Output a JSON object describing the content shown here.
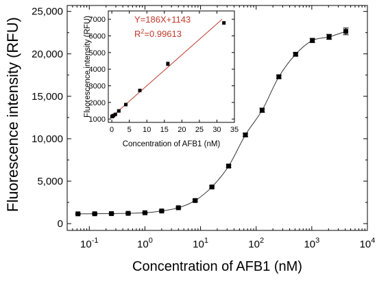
{
  "chart_data": [
    {
      "type": "scatter",
      "xscale": "log",
      "xlabel": "Concentration of AFB1 (nM)",
      "ylabel": "Fluorescence intensity (RFU)",
      "xlim": [
        0.04,
        10000
      ],
      "ylim": [
        -800,
        25700
      ],
      "xticks": [
        {
          "value": 0.1,
          "base": "10",
          "exp": "-1"
        },
        {
          "value": 1,
          "base": "10",
          "exp": "0"
        },
        {
          "value": 10,
          "base": "10",
          "exp": "1"
        },
        {
          "value": 100,
          "base": "10",
          "exp": "2"
        },
        {
          "value": 1000,
          "base": "10",
          "exp": "3"
        },
        {
          "value": 10000,
          "base": "10",
          "exp": "4"
        }
      ],
      "yticks": [
        {
          "value": 0,
          "label": "0"
        },
        {
          "value": 5000,
          "label": "5,000"
        },
        {
          "value": 10000,
          "label": "10,000"
        },
        {
          "value": 15000,
          "label": "15,000"
        },
        {
          "value": 20000,
          "label": "20,000"
        },
        {
          "value": 25000,
          "label": "25,000"
        }
      ],
      "grid": false,
      "marker": "square",
      "connect_line": true,
      "series": [
        {
          "points": [
            {
              "x": 0.0625,
              "y": 1150,
              "err": 60
            },
            {
              "x": 0.125,
              "y": 1160,
              "err": 60
            },
            {
              "x": 0.25,
              "y": 1180,
              "err": 60
            },
            {
              "x": 0.5,
              "y": 1210,
              "err": 60
            },
            {
              "x": 1,
              "y": 1280,
              "err": 60
            },
            {
              "x": 2,
              "y": 1490,
              "err": 80
            },
            {
              "x": 4,
              "y": 1870,
              "err": 80
            },
            {
              "x": 8,
              "y": 2720,
              "err": 100
            },
            {
              "x": 16,
              "y": 4320,
              "err": 120
            },
            {
              "x": 32,
              "y": 6780,
              "err": 150
            },
            {
              "x": 64,
              "y": 10450,
              "err": 200
            },
            {
              "x": 128,
              "y": 13360,
              "err": 250
            },
            {
              "x": 256,
              "y": 17300,
              "err": 200
            },
            {
              "x": 512,
              "y": 19950,
              "err": 200
            },
            {
              "x": 1024,
              "y": 21580,
              "err": 250
            },
            {
              "x": 2048,
              "y": 22000,
              "err": 300
            },
            {
              "x": 4096,
              "y": 22650,
              "err": 400
            }
          ]
        }
      ]
    },
    {
      "type": "scatter",
      "xlabel": "Concentration of AFB1 (nM)",
      "ylabel": "Fluorescence intensity (RFU)",
      "xlim": [
        -1,
        35
      ],
      "ylim": [
        800,
        7500
      ],
      "xticks": [
        0,
        5,
        10,
        15,
        20,
        25,
        30,
        35
      ],
      "yticks": [
        1000,
        2000,
        3000,
        4000,
        5000,
        6000,
        7000
      ],
      "grid": false,
      "marker": "square",
      "fit": {
        "slope": 186,
        "intercept": 1143,
        "line_color": "#c0392b",
        "equation": "Y=186X+1143",
        "r2_prefix": "R",
        "r2_sup": "2",
        "r2_value": "=0.99613",
        "text_color": "#c0392b"
      },
      "series": [
        {
          "points": [
            {
              "x": 0.0625,
              "y": 1150,
              "err": 40
            },
            {
              "x": 0.125,
              "y": 1160,
              "err": 40
            },
            {
              "x": 0.25,
              "y": 1180,
              "err": 40
            },
            {
              "x": 0.5,
              "y": 1210,
              "err": 40
            },
            {
              "x": 1,
              "y": 1280,
              "err": 40
            },
            {
              "x": 2,
              "y": 1490,
              "err": 50
            },
            {
              "x": 4,
              "y": 1870,
              "err": 50
            },
            {
              "x": 8,
              "y": 2720,
              "err": 70
            },
            {
              "x": 16,
              "y": 4320,
              "err": 100
            },
            {
              "x": 32,
              "y": 6780,
              "err": 80
            }
          ]
        }
      ]
    }
  ]
}
